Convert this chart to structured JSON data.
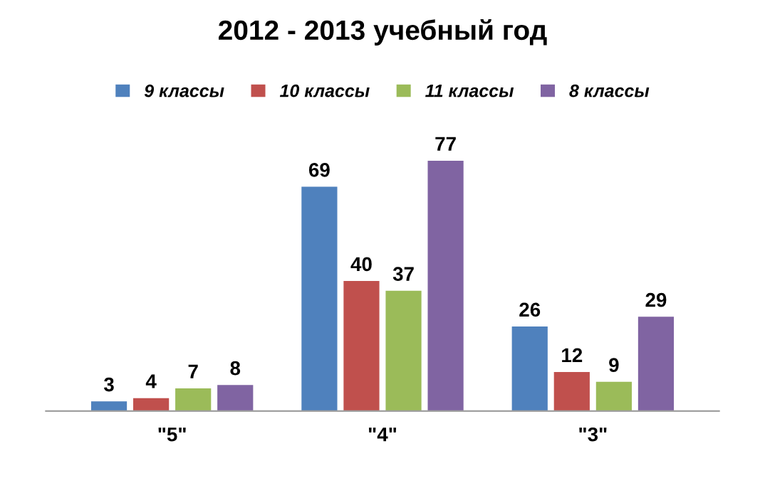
{
  "chart_data": {
    "type": "bar",
    "title": "2012 - 2013 учебный год",
    "categories": [
      "\"5\"",
      "\"4\"",
      "\"3\""
    ],
    "series": [
      {
        "name": "9 классы",
        "color": "#4f81bd",
        "values": [
          3,
          69,
          26
        ]
      },
      {
        "name": "10 классы",
        "color": "#c0504d",
        "values": [
          4,
          40,
          12
        ]
      },
      {
        "name": "11 классы",
        "color": "#9bbb59",
        "values": [
          7,
          37,
          9
        ]
      },
      {
        "name": "8 классы",
        "color": "#8064a2",
        "values": [
          8,
          77,
          29
        ]
      }
    ],
    "data_labels": true,
    "legend": "top",
    "grid": false
  }
}
